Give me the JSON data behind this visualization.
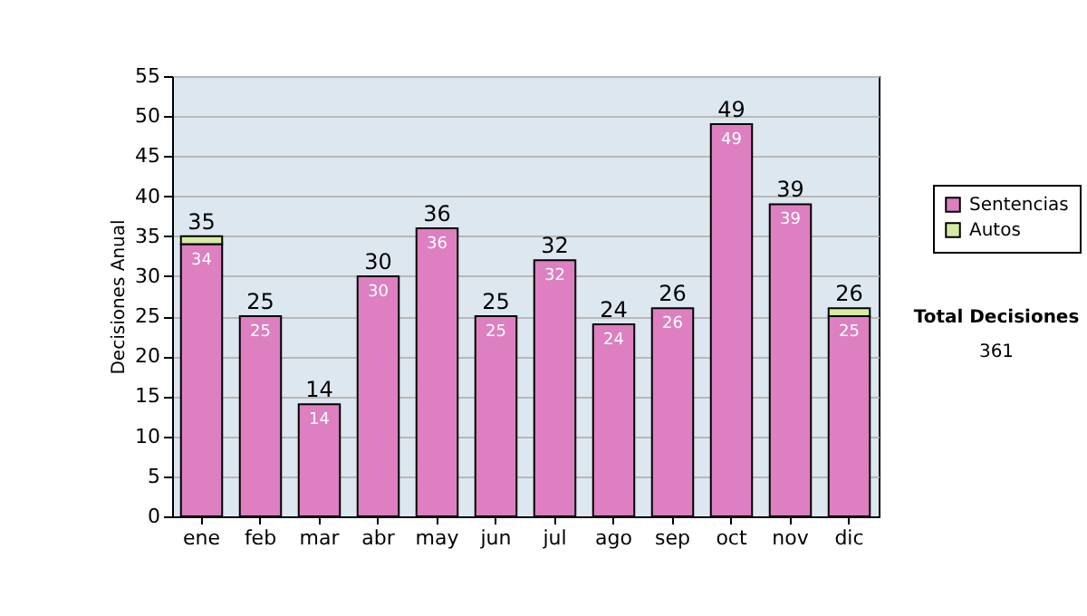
{
  "chart_data": {
    "type": "bar",
    "stacked": true,
    "ylabel": "Decisiones Anual",
    "categories": [
      "ene",
      "feb",
      "mar",
      "abr",
      "may",
      "jun",
      "jul",
      "ago",
      "sep",
      "oct",
      "nov",
      "dic"
    ],
    "series": [
      {
        "name": "Sentencias",
        "color": "#dd7fc0",
        "values": [
          34,
          25,
          14,
          30,
          36,
          25,
          32,
          24,
          26,
          49,
          39,
          25
        ],
        "value_labels": [
          "34",
          "25",
          "14",
          "30",
          "36",
          "25",
          "32",
          "24",
          "26",
          "49",
          "39",
          "25"
        ]
      },
      {
        "name": "Autos",
        "color": "#d6eaa4",
        "values": [
          1,
          0,
          0,
          0,
          0,
          0,
          0,
          0,
          0,
          0,
          0,
          1
        ]
      }
    ],
    "totals": [
      "35",
      "25",
      "14",
      "30",
      "36",
      "25",
      "32",
      "24",
      "26",
      "49",
      "39",
      "26"
    ],
    "ylim": [
      0,
      55
    ],
    "yticks": [
      0,
      5,
      10,
      15,
      20,
      25,
      30,
      35,
      40,
      45,
      50,
      55
    ],
    "grid": "y",
    "legend": "right",
    "annotations": [
      "Total Decisiones",
      "361"
    ]
  }
}
